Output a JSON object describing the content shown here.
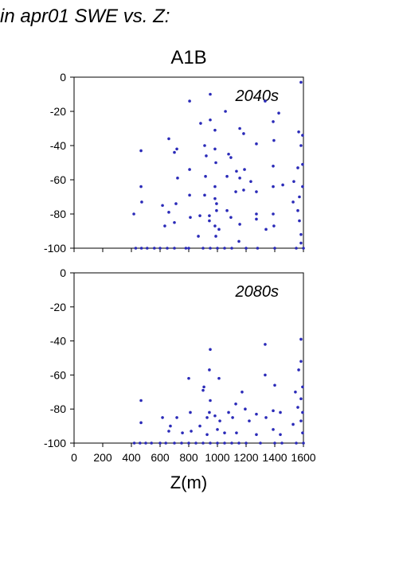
{
  "header": {
    "title": "in apr01 SWE vs. Z:",
    "subtitle": "A1B"
  },
  "chart_data": [
    {
      "type": "scatter",
      "annotation": "2040s",
      "color": "#2a2ab8",
      "xlim": [
        0,
        1600
      ],
      "xticks": [
        0,
        200,
        400,
        600,
        800,
        1000,
        1200,
        1400,
        1600
      ],
      "ylim": [
        -100,
        0
      ],
      "yticks": [
        -100,
        -80,
        -60,
        -40,
        -20,
        0
      ],
      "x": [
        1583,
        806,
        950,
        1333,
        1428,
        1389,
        883,
        950,
        983,
        1056,
        1156,
        1183,
        1272,
        1394,
        1567,
        1594,
        1583,
        467,
        661,
        717,
        700,
        911,
        983,
        1078,
        1094,
        922,
        1189,
        1133,
        989,
        806,
        1389,
        1561,
        1594,
        467,
        722,
        917,
        983,
        1067,
        1156,
        1233,
        1272,
        1389,
        1456,
        1533,
        1594,
        1572,
        472,
        617,
        661,
        711,
        806,
        911,
        983,
        994,
        994,
        1067,
        1128,
        1183,
        1272,
        1272,
        1389,
        1528,
        1561,
        417,
        633,
        700,
        811,
        878,
        944,
        944,
        983,
        1011,
        1094,
        1156,
        1339,
        1394,
        1572,
        1583,
        867,
        989,
        1150,
        1583,
        430,
        470,
        510,
        560,
        600,
        650,
        700,
        780,
        800,
        900,
        950,
        1000,
        1050,
        1100,
        1200,
        1280,
        1400,
        1550,
        1600
      ],
      "values": [
        -3,
        -14,
        -10,
        -14,
        -21,
        -26,
        -27,
        -25,
        -31,
        -20,
        -30,
        -33,
        -39,
        -37,
        -32,
        -34,
        -40,
        -43,
        -36,
        -42,
        -44,
        -40,
        -42,
        -45,
        -47,
        -46,
        -54,
        -55,
        -50,
        -54,
        -52,
        -53,
        -51,
        -64,
        -59,
        -58,
        -64,
        -58,
        -59,
        -61,
        -67,
        -64,
        -63,
        -61,
        -64,
        -70,
        -73,
        -75,
        -79,
        -74,
        -69,
        -69,
        -71,
        -74,
        -78,
        -78,
        -67,
        -66,
        -80,
        -83,
        -80,
        -73,
        -78,
        -80,
        -87,
        -85,
        -82,
        -81,
        -81,
        -84,
        -87,
        -89,
        -82,
        -86,
        -89,
        -87,
        -84,
        -92,
        -93,
        -93,
        -96,
        -97,
        -100,
        -100,
        -100,
        -100,
        -100,
        -100,
        -100,
        -100,
        -100,
        -100,
        -100,
        -100,
        -100,
        -100,
        -100,
        -100,
        -100,
        -100,
        -100
      ]
    },
    {
      "type": "scatter",
      "annotation": "2080s",
      "color": "#2a2ab8",
      "x_label": "Z(m)",
      "xlim": [
        0,
        1600
      ],
      "xticks": [
        0,
        200,
        400,
        600,
        800,
        1000,
        1200,
        1400,
        1600
      ],
      "ylim": [
        -100,
        0
      ],
      "yticks": [
        -100,
        -80,
        -60,
        -40,
        -20,
        0
      ],
      "x": [
        1583,
        1333,
        950,
        944,
        1333,
        1583,
        1567,
        800,
        1011,
        1400,
        906,
        1172,
        1544,
        1594,
        1583,
        467,
        900,
        950,
        1128,
        1194,
        944,
        983,
        1078,
        1272,
        1389,
        1439,
        1561,
        1594,
        617,
        717,
        811,
        928,
        1017,
        1106,
        1222,
        1339,
        1528,
        1583,
        467,
        672,
        661,
        756,
        817,
        878,
        928,
        1000,
        1050,
        1133,
        1272,
        1389,
        1439,
        1594,
        420,
        460,
        500,
        540,
        600,
        640,
        700,
        750,
        800,
        850,
        900,
        950,
        1000,
        1050,
        1100,
        1150,
        1200,
        1300,
        1400,
        1450,
        1550,
        1600
      ],
      "values": [
        -39,
        -42,
        -45,
        -57,
        -60,
        -52,
        -57,
        -62,
        -62,
        -66,
        -67,
        -70,
        -70,
        -67,
        -74,
        -75,
        -69,
        -75,
        -77,
        -80,
        -82,
        -84,
        -82,
        -83,
        -81,
        -82,
        -79,
        -82,
        -85,
        -85,
        -82,
        -85,
        -87,
        -85,
        -87,
        -85,
        -89,
        -87,
        -88,
        -90,
        -93,
        -94,
        -93,
        -90,
        -95,
        -92,
        -94,
        -94,
        -95,
        -92,
        -95,
        -94,
        -100,
        -100,
        -100,
        -100,
        -100,
        -100,
        -100,
        -100,
        -100,
        -100,
        -100,
        -100,
        -100,
        -100,
        -100,
        -100,
        -100,
        -100,
        -100,
        -100,
        -100,
        -100
      ]
    }
  ]
}
